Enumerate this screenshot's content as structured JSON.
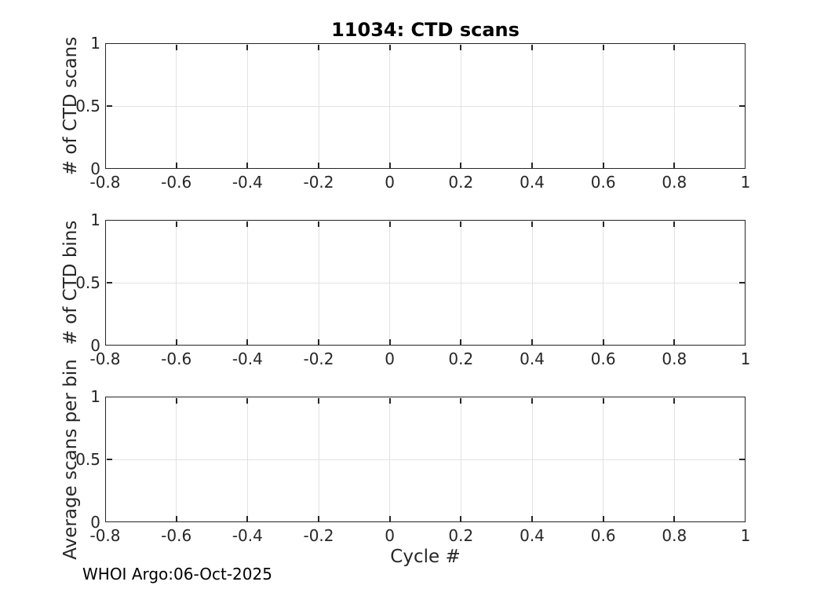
{
  "figure": {
    "title": "11034: CTD scans",
    "xlabel": "Cycle #",
    "footer": "WHOI Argo:06-Oct-2025"
  },
  "colors": {
    "axis": "#262626",
    "tick_label": "#262626",
    "grid": "#e2e2e2",
    "title": "#000000",
    "background": "#ffffff"
  },
  "chart_data": [
    {
      "type": "line",
      "title": "11034: CTD scans",
      "ylabel": "# of CTD scans",
      "xlabel": "",
      "xlim": [
        -0.8,
        1
      ],
      "ylim": [
        0,
        1
      ],
      "xticks": [
        -0.8,
        -0.6,
        -0.4,
        -0.2,
        0,
        0.2,
        0.4,
        0.6,
        0.8,
        1
      ],
      "xtick_labels": [
        "-0.8",
        "-0.6",
        "-0.4",
        "-0.2",
        "0",
        "0.2",
        "0.4",
        "0.6",
        "0.8",
        "1"
      ],
      "yticks": [
        0,
        0.5,
        1
      ],
      "ytick_labels": [
        "0",
        "0.5",
        "1"
      ],
      "grid": true,
      "box": true,
      "series": []
    },
    {
      "type": "line",
      "title": "",
      "ylabel": "# of CTD bins",
      "xlabel": "",
      "xlim": [
        -0.8,
        1
      ],
      "ylim": [
        0,
        1
      ],
      "xticks": [
        -0.8,
        -0.6,
        -0.4,
        -0.2,
        0,
        0.2,
        0.4,
        0.6,
        0.8,
        1
      ],
      "xtick_labels": [
        "-0.8",
        "-0.6",
        "-0.4",
        "-0.2",
        "0",
        "0.2",
        "0.4",
        "0.6",
        "0.8",
        "1"
      ],
      "yticks": [
        0,
        0.5,
        1
      ],
      "ytick_labels": [
        "0",
        "0.5",
        "1"
      ],
      "grid": true,
      "box": true,
      "series": []
    },
    {
      "type": "line",
      "title": "",
      "ylabel": "Average scans per bin",
      "xlabel": "Cycle #",
      "xlim": [
        -0.8,
        1
      ],
      "ylim": [
        0,
        1
      ],
      "xticks": [
        -0.8,
        -0.6,
        -0.4,
        -0.2,
        0,
        0.2,
        0.4,
        0.6,
        0.8,
        1
      ],
      "xtick_labels": [
        "-0.8",
        "-0.6",
        "-0.4",
        "-0.2",
        "0",
        "0.2",
        "0.4",
        "0.6",
        "0.8",
        "1"
      ],
      "yticks": [
        0,
        0.5,
        1
      ],
      "ytick_labels": [
        "0",
        "0.5",
        "1"
      ],
      "grid": true,
      "box": true,
      "series": []
    }
  ]
}
